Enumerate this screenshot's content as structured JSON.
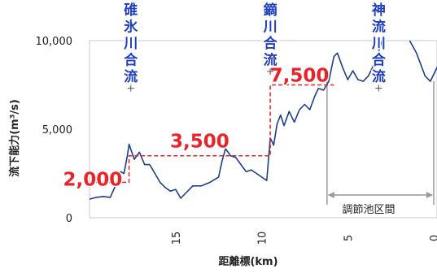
{
  "chart_data": {
    "type": "line",
    "xlabel": "距離標(km)",
    "ylabel": "流下能力(m³/s)",
    "x_reversed": true,
    "xlim": [
      20,
      0
    ],
    "ylim": [
      0,
      10000
    ],
    "x_ticks": [
      {
        "value": 15,
        "label": "15"
      },
      {
        "value": 10,
        "label": "10"
      },
      {
        "value": 5,
        "label": "5"
      },
      {
        "value": 0,
        "label": "0"
      }
    ],
    "y_ticks": [
      {
        "value": 0,
        "label": "0"
      },
      {
        "value": 5000,
        "label": "5,000"
      },
      {
        "value": 10000,
        "label": "10,000"
      }
    ],
    "grid": false,
    "colors": {
      "capacity_line": "#1c3f8a",
      "design_flow": "#e8242a",
      "confluence_text": "#1f3fbf",
      "section_bracket": "#9a9a9a"
    },
    "series": [
      {
        "points": [
          [
            20,
            1050
          ],
          [
            19.6,
            1150
          ],
          [
            19.2,
            1200
          ],
          [
            18.8,
            1150
          ],
          [
            18.4,
            2000
          ],
          [
            18.2,
            2600
          ],
          [
            18,
            2500
          ],
          [
            17.8,
            3500
          ],
          [
            17.7,
            4150
          ],
          [
            17.4,
            3300
          ],
          [
            17.1,
            3700
          ],
          [
            16.8,
            3000
          ],
          [
            16.5,
            3000
          ],
          [
            16.2,
            2500
          ],
          [
            15.9,
            2000
          ],
          [
            15.6,
            1700
          ],
          [
            15.3,
            1500
          ],
          [
            15,
            1600
          ],
          [
            14.7,
            1100
          ],
          [
            14.4,
            1400
          ],
          [
            14,
            1800
          ],
          [
            13.5,
            1800
          ],
          [
            13,
            2000
          ],
          [
            12.5,
            2300
          ],
          [
            12.3,
            3200
          ],
          [
            12.1,
            3900
          ],
          [
            11.8,
            3500
          ],
          [
            11.5,
            3400
          ],
          [
            11.2,
            3000
          ],
          [
            10.9,
            2600
          ],
          [
            10.6,
            2700
          ],
          [
            10.3,
            2500
          ],
          [
            10,
            2300
          ],
          [
            9.7,
            2100
          ],
          [
            9.5,
            4500
          ],
          [
            9.3,
            4100
          ],
          [
            9.1,
            5300
          ],
          [
            8.9,
            5800
          ],
          [
            8.7,
            5200
          ],
          [
            8.4,
            6000
          ],
          [
            8.1,
            5400
          ],
          [
            7.8,
            6100
          ],
          [
            7.5,
            6400
          ],
          [
            7.2,
            6100
          ],
          [
            6.9,
            6900
          ],
          [
            6.7,
            7300
          ],
          [
            6.4,
            7200
          ],
          [
            6.1,
            7700
          ],
          [
            5.8,
            9100
          ],
          [
            5.6,
            9300
          ],
          [
            5.3,
            8500
          ],
          [
            5.0,
            7800
          ],
          [
            4.7,
            8300
          ],
          [
            4.4,
            7800
          ],
          [
            4.1,
            7700
          ],
          [
            3.8,
            8000
          ],
          [
            3.5,
            8600
          ],
          [
            3.2,
            9400
          ],
          [
            3.0,
            10000
          ]
        ]
      },
      {
        "points": [
          [
            1.4,
            10000
          ],
          [
            1.0,
            9300
          ],
          [
            0.5,
            8000
          ],
          [
            0.2,
            7700
          ],
          [
            -0.2,
            8500
          ],
          [
            -0.6,
            9500
          ]
        ]
      }
    ],
    "design_flow": [
      {
        "label": "2,000",
        "value": 2000,
        "x_from": 20,
        "x_to": 17.7
      },
      {
        "label": "3,500",
        "value": 3500,
        "x_from": 17.7,
        "x_to": 9.5
      },
      {
        "label": "7,500",
        "value": 7500,
        "x_from": 9.5,
        "x_to": 5.8
      }
    ],
    "confluences": [
      {
        "label": "碓氷川合流",
        "x": 17.6
      },
      {
        "label": "鏑川合流",
        "x": 9.5
      },
      {
        "label": "神流川合流",
        "x": 3.2
      }
    ],
    "section": {
      "label": "調節池区間",
      "x_from": 6.2,
      "x_to": 0
    }
  }
}
